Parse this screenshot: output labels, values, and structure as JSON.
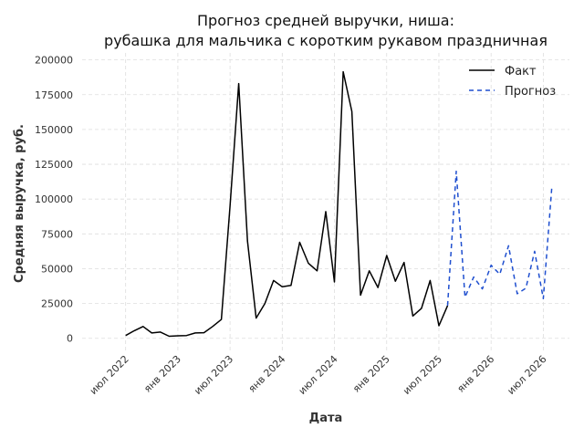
{
  "chart_data": {
    "type": "line",
    "title_line1": "Прогноз средней выручки, ниша:",
    "title_line2": "рубашка для мальчика с коротким рукавом праздничная",
    "xlabel": "Дата",
    "ylabel": "Средняя выручка, руб.",
    "ylim": [
      -10000,
      205000
    ],
    "y_ticks": [
      0,
      25000,
      50000,
      75000,
      100000,
      125000,
      150000,
      175000,
      200000
    ],
    "x_ticks": [
      {
        "label": "июл 2022",
        "date": "2022-07"
      },
      {
        "label": "янв 2023",
        "date": "2023-01"
      },
      {
        "label": "июл 2023",
        "date": "2023-07"
      },
      {
        "label": "янв 2024",
        "date": "2024-01"
      },
      {
        "label": "июл 2024",
        "date": "2024-07"
      },
      {
        "label": "янв 2025",
        "date": "2025-01"
      },
      {
        "label": "июл 2025",
        "date": "2025-07"
      },
      {
        "label": "янв 2026",
        "date": "2026-01"
      },
      {
        "label": "июл 2026",
        "date": "2026-07"
      }
    ],
    "xlim": [
      "2022-02",
      "2026-10"
    ],
    "grid": true,
    "legend_position": "top-right",
    "series": [
      {
        "name": "Факт",
        "color": "#000000",
        "style": "solid",
        "points": [
          [
            "2022-07",
            2000
          ],
          [
            "2022-08",
            5500
          ],
          [
            "2022-09",
            8500
          ],
          [
            "2022-10",
            3800
          ],
          [
            "2022-11",
            4500
          ],
          [
            "2022-12",
            1500
          ],
          [
            "2023-01",
            1800
          ],
          [
            "2023-02",
            2000
          ],
          [
            "2023-03",
            3800
          ],
          [
            "2023-04",
            4000
          ],
          [
            "2023-05",
            8500
          ],
          [
            "2023-06",
            13500
          ],
          [
            "2023-07",
            95000
          ],
          [
            "2023-08",
            183000
          ],
          [
            "2023-09",
            70000
          ],
          [
            "2023-10",
            14500
          ],
          [
            "2023-11",
            25000
          ],
          [
            "2023-12",
            41500
          ],
          [
            "2024-01",
            37000
          ],
          [
            "2024-02",
            38000
          ],
          [
            "2024-03",
            69000
          ],
          [
            "2024-04",
            54000
          ],
          [
            "2024-05",
            48500
          ],
          [
            "2024-06",
            91000
          ],
          [
            "2024-07",
            40500
          ],
          [
            "2024-08",
            191500
          ],
          [
            "2024-09",
            163000
          ],
          [
            "2024-10",
            31000
          ],
          [
            "2024-11",
            48500
          ],
          [
            "2024-12",
            36500
          ],
          [
            "2025-01",
            59500
          ],
          [
            "2025-02",
            41000
          ],
          [
            "2025-03",
            54500
          ],
          [
            "2025-04",
            16000
          ],
          [
            "2025-05",
            21500
          ],
          [
            "2025-06",
            41500
          ],
          [
            "2025-07",
            9000
          ],
          [
            "2025-08",
            23500
          ]
        ]
      },
      {
        "name": "Прогноз",
        "color": "#1f4fcf",
        "style": "dashed",
        "points": [
          [
            "2025-08",
            23500
          ],
          [
            "2025-09",
            120000
          ],
          [
            "2025-10",
            29500
          ],
          [
            "2025-11",
            44000
          ],
          [
            "2025-12",
            35500
          ],
          [
            "2026-01",
            52500
          ],
          [
            "2026-02",
            46000
          ],
          [
            "2026-03",
            66500
          ],
          [
            "2026-04",
            32000
          ],
          [
            "2026-05",
            36000
          ],
          [
            "2026-06",
            62500
          ],
          [
            "2026-07",
            28500
          ],
          [
            "2026-08",
            110000
          ]
        ]
      }
    ]
  }
}
